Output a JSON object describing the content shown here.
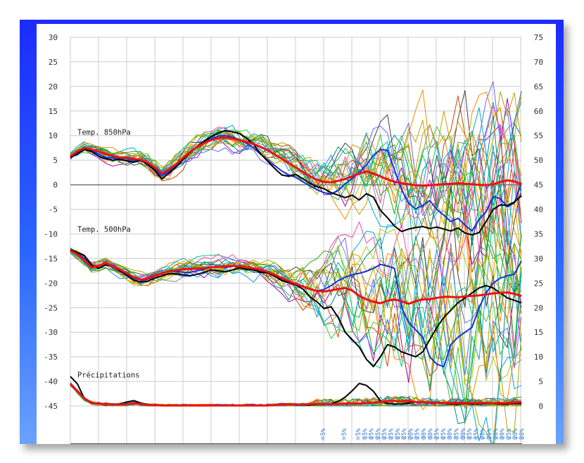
{
  "chart_data": {
    "type": "line",
    "panel_labels": [
      "Temp. 850hPa",
      "Temp. 500hPa",
      "Précipitations"
    ],
    "left_axis": {
      "ylim": [
        -45,
        30
      ],
      "ticks": [
        "30",
        "25",
        "20",
        "15",
        "10",
        "5",
        "0",
        "-5",
        "-10",
        "-15",
        "-20",
        "-25",
        "-30",
        "-35",
        "-40",
        "-45"
      ]
    },
    "right_axis": {
      "ylim": [
        0,
        75
      ],
      "ticks": [
        "75",
        "70",
        "65",
        "60",
        "55",
        "50",
        "45",
        "40",
        "35",
        "30",
        "25",
        "20",
        "15",
        "10",
        "5",
        "0"
      ]
    },
    "grid": true,
    "x_steps": 65,
    "snow_labels": [
      "5%",
      "5%",
      "5%",
      "15%",
      "25%",
      "25%",
      "25%",
      "25%",
      "25%",
      "25%",
      "20%",
      "25%",
      "30%",
      "30%",
      "25%",
      "25%",
      "30%",
      "35%",
      "30%",
      "25%",
      "15%",
      "20%",
      "25%",
      "20%",
      "20%",
      "25%",
      "20%",
      "20%"
    ],
    "series": [
      {
        "panel": "850hPa",
        "role": "mean",
        "color": "#ee1111",
        "values": [
          5.8,
          6.8,
          7.5,
          7.2,
          6.8,
          6.2,
          5.9,
          5.6,
          5.5,
          5.3,
          5.1,
          4.5,
          3.5,
          2.3,
          3.1,
          4.2,
          5.5,
          6.7,
          7.7,
          8.5,
          9.1,
          9.5,
          9.6,
          9.4,
          9.1,
          8.7,
          8.3,
          7.7,
          7.0,
          6.2,
          5.3,
          4.4,
          3.5,
          2.6,
          1.7,
          1.0,
          0.6,
          0.5,
          0.8,
          1.2,
          1.7,
          2.3,
          2.7,
          2.3,
          1.7,
          1.1,
          0.6,
          0.3,
          0.1,
          -0.1,
          -0.2,
          -0.1,
          0.0,
          0.1,
          0.2,
          0.3,
          0.2,
          0.1,
          0.0,
          -0.1,
          0.1,
          0.6,
          0.9,
          0.7,
          0.1
        ]
      },
      {
        "panel": "850hPa",
        "role": "control",
        "color": "#000000",
        "values": [
          5.6,
          6.3,
          7.2,
          6.8,
          5.8,
          5.3,
          5.0,
          5.2,
          4.9,
          4.6,
          5.0,
          4.1,
          2.9,
          1.2,
          2.4,
          3.6,
          5.1,
          6.6,
          7.8,
          8.9,
          9.8,
          10.5,
          11.0,
          10.8,
          10.4,
          9.5,
          8.2,
          6.3,
          4.8,
          3.3,
          2.0,
          1.7,
          2.1,
          1.2,
          0.3,
          -0.4,
          -0.8,
          -1.6,
          -2.1,
          -2.6,
          -2.1,
          -3.1,
          -1.8,
          -2.5,
          -5.2,
          -6.7,
          -8.4,
          -9.5,
          -9.0,
          -8.7,
          -8.5,
          -8.9,
          -8.6,
          -9.0,
          -9.4,
          -8.8,
          -9.8,
          -10.2,
          -9.7,
          -7.5,
          -5.0,
          -4.1,
          -4.2,
          -3.5,
          -2.2
        ]
      },
      {
        "panel": "850hPa",
        "role": "member",
        "color": "#1133dd",
        "values": [
          5.4,
          6.5,
          7.4,
          7.0,
          6.2,
          5.6,
          5.4,
          5.5,
          5.3,
          5.0,
          4.9,
          4.3,
          3.2,
          1.8,
          2.8,
          4.0,
          5.3,
          6.5,
          7.7,
          8.6,
          9.4,
          9.9,
          10.0,
          9.7,
          9.2,
          8.4,
          7.5,
          6.2,
          5.1,
          3.9,
          2.8,
          2.0,
          1.5,
          0.6,
          -0.2,
          -1.0,
          -1.6,
          -1.9,
          -1.1,
          0.2,
          1.3,
          2.5,
          4.0,
          6.0,
          7.2,
          7.0,
          3.0,
          -1.0,
          -3.8,
          -4.9,
          -4.2,
          -3.2,
          -5.0,
          -6.2,
          -7.5,
          -6.8,
          -8.2,
          -9.4,
          -7.0,
          -5.5,
          -2.4,
          -2.8,
          -4.5,
          -3.7,
          0.4
        ]
      },
      {
        "panel": "500hPa",
        "role": "mean",
        "color": "#ee1111",
        "values": [
          -13.4,
          -14.2,
          -15.4,
          -16.8,
          -16.5,
          -15.9,
          -16.6,
          -17.2,
          -18.0,
          -18.8,
          -19.3,
          -19.0,
          -18.5,
          -18.0,
          -17.6,
          -17.4,
          -17.2,
          -17.1,
          -17.0,
          -17.0,
          -16.8,
          -16.7,
          -16.6,
          -16.5,
          -16.6,
          -16.8,
          -17.0,
          -17.3,
          -17.7,
          -18.3,
          -19.0,
          -19.6,
          -20.2,
          -20.7,
          -21.2,
          -21.6,
          -21.7,
          -21.5,
          -21.2,
          -21.0,
          -21.5,
          -22.6,
          -23.3,
          -23.8,
          -24.1,
          -23.6,
          -23.3,
          -23.7,
          -24.2,
          -23.7,
          -23.3,
          -23.3,
          -23.0,
          -22.8,
          -22.8,
          -22.9,
          -22.7,
          -22.6,
          -22.5,
          -22.3,
          -22.1,
          -22.0,
          -21.9,
          -22.2,
          -22.6
        ]
      },
      {
        "panel": "500hPa",
        "role": "control",
        "color": "#000000",
        "values": [
          -13.2,
          -13.8,
          -14.4,
          -16.3,
          -17.0,
          -16.3,
          -16.6,
          -17.5,
          -18.4,
          -19.4,
          -19.8,
          -19.6,
          -19.0,
          -18.5,
          -18.1,
          -18.1,
          -18.3,
          -18.5,
          -18.2,
          -17.8,
          -17.3,
          -17.5,
          -17.7,
          -17.3,
          -16.9,
          -17.2,
          -17.3,
          -17.8,
          -17.9,
          -18.6,
          -19.5,
          -19.9,
          -20.4,
          -21.2,
          -22.8,
          -23.8,
          -25.2,
          -24.8,
          -27.0,
          -30.0,
          -31.5,
          -33.0,
          -35.5,
          -37.0,
          -35.0,
          -32.5,
          -33.0,
          -34.0,
          -34.5,
          -35.0,
          -34.0,
          -31.5,
          -29.0,
          -27.0,
          -25.5,
          -24.0,
          -23.0,
          -22.0,
          -21.0,
          -20.5,
          -21.0,
          -22.0,
          -23.0,
          -23.5,
          -24.0
        ]
      },
      {
        "panel": "500hPa",
        "role": "member",
        "color": "#1133dd",
        "values": [
          -13.4,
          -14.0,
          -15.0,
          -16.6,
          -16.4,
          -15.9,
          -16.4,
          -17.3,
          -18.2,
          -19.0,
          -19.4,
          -19.2,
          -18.6,
          -18.1,
          -17.6,
          -17.6,
          -17.8,
          -17.8,
          -17.5,
          -17.2,
          -16.8,
          -16.7,
          -16.8,
          -16.6,
          -16.4,
          -16.8,
          -17.0,
          -17.5,
          -17.9,
          -18.5,
          -19.2,
          -19.7,
          -20.1,
          -20.6,
          -21.2,
          -21.6,
          -21.3,
          -20.5,
          -19.5,
          -18.8,
          -18.3,
          -18.0,
          -17.6,
          -17.0,
          -16.2,
          -16.5,
          -17.0,
          -25.0,
          -28.0,
          -29.5,
          -31.0,
          -35.0,
          -36.5,
          -37.0,
          -32.5,
          -31.0,
          -30.0,
          -29.0,
          -25.0,
          -22.0,
          -20.0,
          -19.0,
          -18.5,
          -18.2,
          -15.5
        ]
      }
    ],
    "precip": {
      "unit": "right axis",
      "mean": [
        4.5,
        3.0,
        1.5,
        0.7,
        0.5,
        0.4,
        0.3,
        0.3,
        0.4,
        0.6,
        0.4,
        0.2,
        0.2,
        0.1,
        0.1,
        0.1,
        0.1,
        0.1,
        0.1,
        0.1,
        0.1,
        0.1,
        0.1,
        0.1,
        0.1,
        0.1,
        0.1,
        0.1,
        0.1,
        0.2,
        0.3,
        0.3,
        0.3,
        0.3,
        0.4,
        0.4,
        0.4,
        0.4,
        0.4,
        0.5,
        0.5,
        0.5,
        0.6,
        0.7,
        0.8,
        1.0,
        1.0,
        1.0,
        1.0,
        0.8,
        0.8,
        0.7,
        0.7,
        0.6,
        0.6,
        0.6,
        0.6,
        0.6,
        0.6,
        0.6,
        0.6,
        0.6,
        0.6,
        0.7,
        0.8
      ],
      "control": [
        6.0,
        4.5,
        1.5,
        0.6,
        0.5,
        0.5,
        0.4,
        0.4,
        0.8,
        1.1,
        0.6,
        0.3,
        0.1,
        0.1,
        0.1,
        0.1,
        0.1,
        0.1,
        0.1,
        0.1,
        0.1,
        0.1,
        0.1,
        0.1,
        0.1,
        0.1,
        0.1,
        0.1,
        0.1,
        0.2,
        0.3,
        0.3,
        0.2,
        0.2,
        0.2,
        0.3,
        0.3,
        0.5,
        0.9,
        1.8,
        3.1,
        4.6,
        4.2,
        3.0,
        1.0,
        0.5,
        0.4,
        0.4,
        0.6,
        0.8,
        0.8,
        0.6,
        0.6,
        0.5,
        0.4,
        0.4,
        0.5,
        0.4,
        0.4,
        0.5,
        0.5,
        0.4,
        0.4,
        0.5,
        0.5
      ]
    }
  }
}
